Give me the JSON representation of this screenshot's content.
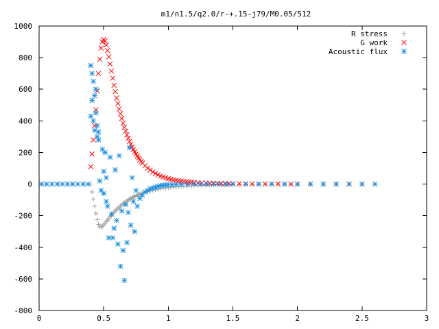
{
  "chart_data": {
    "type": "scatter",
    "title": "m1/n1.5/q2.0/r-+.15-j79/M0.05/512",
    "xlabel": "",
    "ylabel": "",
    "xlim": [
      0,
      3
    ],
    "ylim": [
      -800,
      1000
    ],
    "x_ticks": [
      0,
      0.5,
      1,
      1.5,
      2,
      2.5,
      3
    ],
    "x_tick_labels": [
      "0",
      "0.5",
      "1",
      "1.5",
      "2",
      "2.5",
      "3"
    ],
    "y_ticks": [
      -800,
      -600,
      -400,
      -200,
      0,
      200,
      400,
      600,
      800,
      1000
    ],
    "y_tick_labels": [
      "-800",
      "-600",
      "-400",
      "-200",
      "0",
      "200",
      "400",
      "600",
      "800",
      "1000"
    ],
    "grid": false,
    "legend_position": "top-right",
    "series": [
      {
        "name": "R stress",
        "marker": "plus",
        "color": "#a0a0a0",
        "x": [
          0.05,
          0.15,
          0.25,
          0.35,
          0.4,
          0.41,
          0.42,
          0.43,
          0.44,
          0.45,
          0.46,
          0.47,
          0.48,
          0.49,
          0.5,
          0.51,
          0.52,
          0.53,
          0.54,
          0.55,
          0.56,
          0.57,
          0.58,
          0.59,
          0.6,
          0.61,
          0.62,
          0.63,
          0.64,
          0.65,
          0.66,
          0.67,
          0.68,
          0.69,
          0.7,
          0.71,
          0.72,
          0.73,
          0.74,
          0.75,
          0.76,
          0.77,
          0.78,
          0.79,
          0.8,
          0.82,
          0.84,
          0.86,
          0.88,
          0.9,
          0.92,
          0.94,
          0.96,
          0.98,
          1.0,
          1.02,
          1.04,
          1.06,
          1.08,
          1.1,
          1.12,
          1.14,
          1.16,
          1.18,
          1.2,
          1.23,
          1.26,
          1.29,
          1.32,
          1.35,
          1.38,
          1.41,
          1.44,
          1.47,
          1.5,
          1.55,
          1.6,
          1.65,
          1.7,
          1.75,
          1.8,
          1.85,
          1.9,
          1.95,
          2.0,
          2.1,
          2.2,
          2.3,
          2.4,
          2.5,
          2.6
        ],
        "y": [
          0,
          0,
          0,
          0,
          0,
          -50,
          -95,
          -140,
          -185,
          -225,
          -255,
          -270,
          -272,
          -266,
          -258,
          -248,
          -238,
          -228,
          -218,
          -208,
          -198,
          -188,
          -178,
          -170,
          -162,
          -154,
          -146,
          -139,
          -132,
          -125,
          -119,
          -113,
          -107,
          -101,
          -96,
          -91,
          -86,
          -82,
          -78,
          -74,
          -70,
          -67,
          -64,
          -61,
          -58,
          -53,
          -48,
          -44,
          -40,
          -36,
          -33,
          -30,
          -27,
          -25,
          -23,
          -21,
          -19,
          -18,
          -16,
          -15,
          -14,
          -13,
          -12,
          -11,
          -10,
          -9,
          -8,
          -7,
          -7,
          -6,
          -6,
          -5,
          -5,
          -4,
          -4,
          -3,
          -3,
          -3,
          -2,
          -2,
          -2,
          -2,
          -1,
          -1,
          -1,
          -1,
          0,
          0,
          0,
          0,
          0
        ]
      },
      {
        "name": "G work",
        "marker": "cross",
        "color": "#ff0000",
        "x": [
          0.4,
          0.41,
          0.42,
          0.43,
          0.44,
          0.45,
          0.46,
          0.47,
          0.48,
          0.49,
          0.5,
          0.51,
          0.52,
          0.53,
          0.54,
          0.55,
          0.56,
          0.57,
          0.58,
          0.59,
          0.6,
          0.61,
          0.62,
          0.63,
          0.64,
          0.65,
          0.66,
          0.67,
          0.68,
          0.69,
          0.7,
          0.71,
          0.72,
          0.73,
          0.74,
          0.75,
          0.76,
          0.77,
          0.78,
          0.79,
          0.8,
          0.82,
          0.84,
          0.86,
          0.88,
          0.9,
          0.92,
          0.94,
          0.96,
          0.98,
          1.0,
          1.02,
          1.04,
          1.06,
          1.08,
          1.1,
          1.12,
          1.14,
          1.16,
          1.18,
          1.2,
          1.23,
          1.26,
          1.29,
          1.32,
          1.35,
          1.38,
          1.41,
          1.44,
          1.47,
          1.5,
          1.55,
          1.6,
          1.65,
          1.7,
          1.75,
          1.8,
          1.85,
          1.9,
          1.95,
          2.0,
          2.1,
          2.2,
          2.3,
          2.4,
          2.5
        ],
        "y": [
          110,
          190,
          280,
          370,
          470,
          590,
          700,
          790,
          860,
          900,
          915,
          905,
          880,
          845,
          805,
          760,
          715,
          670,
          625,
          585,
          545,
          510,
          475,
          445,
          415,
          385,
          360,
          335,
          312,
          290,
          270,
          252,
          235,
          219,
          204,
          190,
          177,
          165,
          154,
          143,
          133,
          116,
          101,
          88,
          77,
          67,
          59,
          51,
          45,
          39,
          34,
          30,
          26,
          23,
          20,
          18,
          16,
          14,
          12,
          11,
          10,
          8,
          7,
          6,
          5,
          5,
          4,
          4,
          3,
          3,
          2,
          2,
          2,
          1,
          1,
          1,
          1,
          1,
          0,
          0,
          0,
          0,
          0,
          0,
          0,
          0
        ]
      },
      {
        "name": "Acoustic flux",
        "marker": "star",
        "color": "#1e90e0",
        "x": [
          0.02,
          0.06,
          0.1,
          0.14,
          0.18,
          0.22,
          0.26,
          0.3,
          0.34,
          0.38,
          0.4,
          0.4,
          0.41,
          0.41,
          0.42,
          0.42,
          0.43,
          0.43,
          0.44,
          0.44,
          0.45,
          0.45,
          0.46,
          0.46,
          0.47,
          0.48,
          0.49,
          0.5,
          0.5,
          0.51,
          0.52,
          0.52,
          0.53,
          0.54,
          0.55,
          0.56,
          0.57,
          0.58,
          0.59,
          0.6,
          0.61,
          0.62,
          0.63,
          0.64,
          0.65,
          0.66,
          0.67,
          0.68,
          0.69,
          0.7,
          0.71,
          0.72,
          0.73,
          0.74,
          0.75,
          0.76,
          0.78,
          0.8,
          0.82,
          0.84,
          0.86,
          0.88,
          0.9,
          0.92,
          0.94,
          0.96,
          0.98,
          1.0,
          1.03,
          1.06,
          1.1,
          1.15,
          1.2,
          1.25,
          1.3,
          1.35,
          1.4,
          1.45,
          1.5,
          1.6,
          1.7,
          1.8,
          1.9,
          2.0,
          2.1,
          2.2,
          2.3,
          2.4,
          2.5,
          2.6
        ],
        "y": [
          0,
          0,
          0,
          0,
          0,
          0,
          0,
          0,
          0,
          0,
          750,
          430,
          700,
          530,
          650,
          400,
          560,
          340,
          600,
          450,
          370,
          300,
          280,
          330,
          20,
          -40,
          220,
          -60,
          80,
          200,
          -110,
          40,
          -140,
          -340,
          170,
          -190,
          -340,
          -280,
          90,
          -230,
          -380,
          180,
          -520,
          -170,
          -420,
          -610,
          -130,
          -370,
          -180,
          230,
          -260,
          40,
          -110,
          -300,
          -40,
          -140,
          -90,
          -70,
          -50,
          -40,
          -30,
          -25,
          -20,
          -15,
          -10,
          -8,
          -6,
          -5,
          -4,
          -3,
          -2,
          -1,
          0,
          0,
          0,
          0,
          0,
          0,
          0,
          0,
          0,
          0,
          0,
          0,
          0,
          0,
          0,
          0,
          0,
          0
        ]
      }
    ]
  }
}
